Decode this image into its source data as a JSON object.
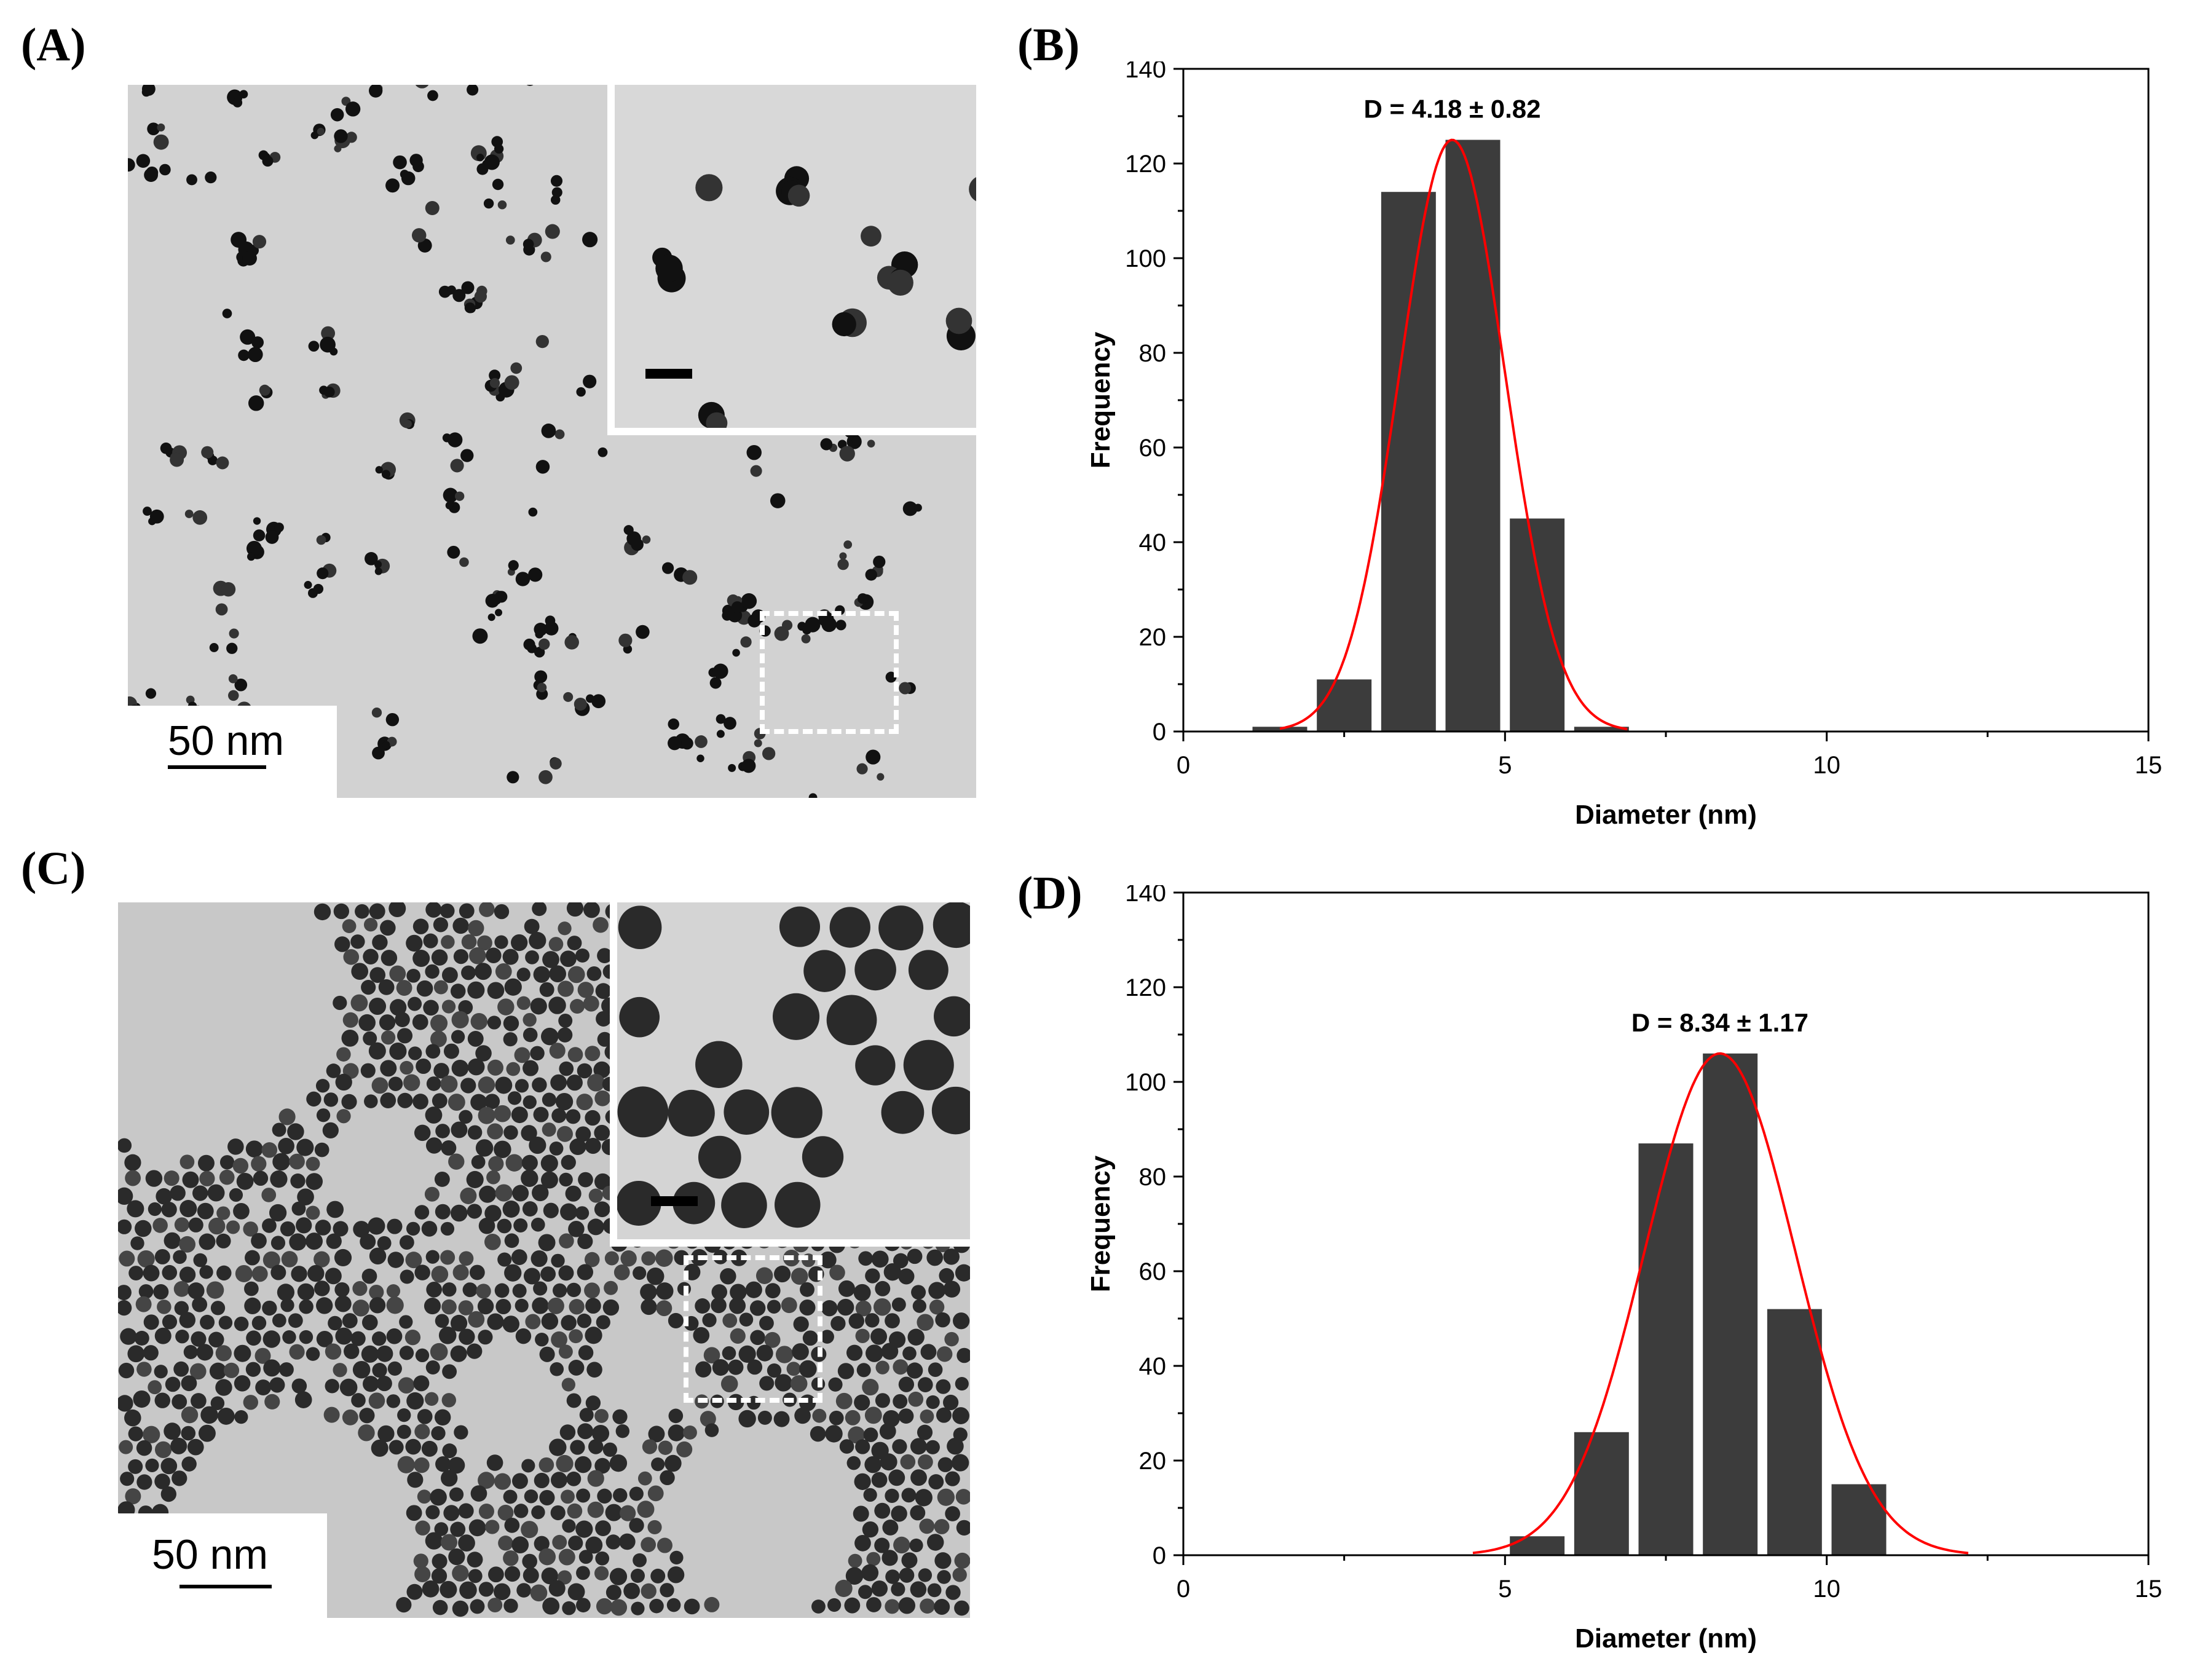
{
  "panels": {
    "a": {
      "letter": "(A)",
      "scale_label": "50 nm"
    },
    "b": {
      "letter": "(B)"
    },
    "c": {
      "letter": "(C)",
      "scale_label": "50 nm"
    },
    "d": {
      "letter": "(D)"
    }
  },
  "colors": {
    "bar": "#3c3c3c",
    "fit": "#ff0000",
    "axis": "#000000"
  },
  "chart_data": [
    {
      "type": "bar",
      "panel": "B",
      "x": [
        1.5,
        2.5,
        3.5,
        4.5,
        5.5,
        6.5
      ],
      "values": [
        1,
        11,
        114,
        125,
        45,
        1
      ],
      "bar_width": 0.85,
      "fit_curve": {
        "type": "gaussian",
        "mean": 4.18,
        "sd": 0.82,
        "peak": 125,
        "x_range": [
          1.5,
          6.9
        ]
      },
      "annotation": "D = 4.18 ± 0.82",
      "xlabel": "Diameter (nm)",
      "ylabel": "Frequency",
      "xlim": [
        0,
        15
      ],
      "ylim": [
        0,
        140
      ],
      "xticks": [
        0,
        5,
        10,
        15
      ],
      "yticks": [
        0,
        20,
        40,
        60,
        80,
        100,
        120,
        140
      ]
    },
    {
      "type": "bar",
      "panel": "D",
      "x": [
        5.5,
        6.5,
        7.5,
        8.5,
        9.5,
        10.5
      ],
      "values": [
        4,
        26,
        87,
        106,
        52,
        15
      ],
      "bar_width": 0.85,
      "fit_curve": {
        "type": "gaussian",
        "mean": 8.34,
        "sd": 1.17,
        "peak": 106,
        "x_range": [
          4.5,
          12.2
        ]
      },
      "annotation": "D = 8.34 ± 1.17",
      "xlabel": "Diameter (nm)",
      "ylabel": "Frequency",
      "xlim": [
        0,
        15
      ],
      "ylim": [
        0,
        140
      ],
      "xticks": [
        0,
        5,
        10,
        15
      ],
      "yticks": [
        0,
        20,
        40,
        60,
        80,
        100,
        120,
        140
      ]
    }
  ]
}
